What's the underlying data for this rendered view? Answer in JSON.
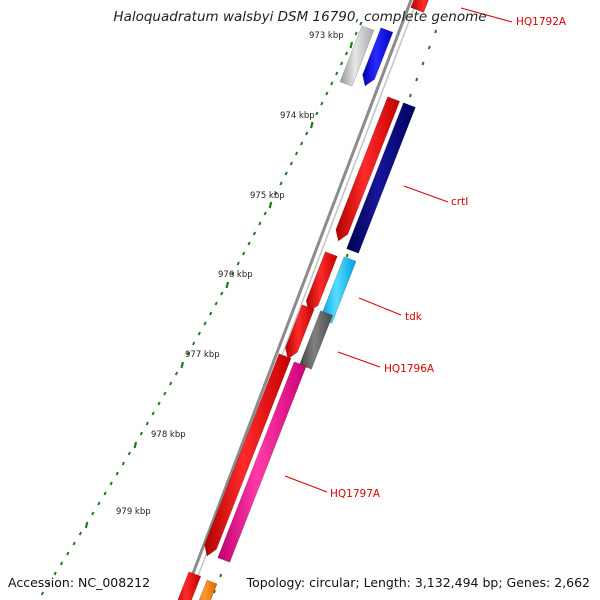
{
  "title": "Haloquadratum walsbyi DSM 16790, complete genome",
  "footer": {
    "accession": "Accession: NC_008212",
    "summary": "Topology: circular; Length: 3,132,494 bp; Genes: 2,662"
  },
  "tick_labels": [
    "973 kbp",
    "974 kbp",
    "975 kbp",
    "976 kbp",
    "977 kbp",
    "978 kbp",
    "979 kbp"
  ],
  "gene_labels": [
    "HQ1792A",
    "crtI",
    "tdk",
    "HQ1796A",
    "HQ1797A"
  ],
  "colors": {
    "tick": "#1f7a1f",
    "backbone": "#8c8c8c",
    "label": "#dd0000",
    "red": "#ff0000",
    "navy": "#0a0a7a",
    "blue": "#0000ff",
    "silver": "#bbbbbb",
    "cyan": "#22ccff",
    "grey": "#666666",
    "pink": "#ff1493",
    "orange": "#ff7f00"
  }
}
